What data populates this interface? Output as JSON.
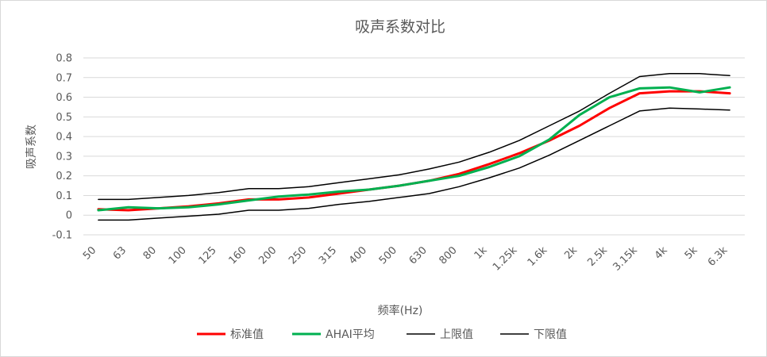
{
  "colors": {
    "standard": "#ff0000",
    "ahai": "#00b050",
    "upper": "#000000",
    "lower": "#000000",
    "grid": "#d9d9d9",
    "text": "#595959"
  },
  "chart_data": {
    "type": "line",
    "title": "吸声系数对比",
    "xlabel": "频率(Hz)",
    "ylabel": "吸声系数",
    "ylim": [
      -0.1,
      0.8
    ],
    "yticks": [
      "-0.1",
      "0",
      "0.1",
      "0.2",
      "0.3",
      "0.4",
      "0.5",
      "0.6",
      "0.7",
      "0.8"
    ],
    "grid": true,
    "legend_position": "bottom",
    "categories": [
      "50",
      "63",
      "80",
      "100",
      "125",
      "160",
      "200",
      "250",
      "315",
      "400",
      "500",
      "630",
      "800",
      "1k",
      "1.25k",
      "1.6k",
      "2k",
      "2.5k",
      "3.15k",
      "4k",
      "5k",
      "6.3k"
    ],
    "series": [
      {
        "name": "标准值",
        "color_key": "standard",
        "width": 3,
        "values": [
          0.03,
          0.025,
          0.035,
          0.045,
          0.06,
          0.08,
          0.08,
          0.09,
          0.11,
          0.13,
          0.15,
          0.175,
          0.21,
          0.26,
          0.315,
          0.38,
          0.455,
          0.545,
          0.62,
          0.63,
          0.63,
          0.62
        ]
      },
      {
        "name": "AHAI平均",
        "color_key": "ahai",
        "width": 3,
        "values": [
          0.025,
          0.04,
          0.035,
          0.04,
          0.055,
          0.075,
          0.095,
          0.105,
          0.12,
          0.13,
          0.15,
          0.175,
          0.2,
          0.245,
          0.3,
          0.385,
          0.51,
          0.6,
          0.645,
          0.65,
          0.625,
          0.65
        ]
      },
      {
        "name": "上限值",
        "color_key": "upper",
        "width": 1.5,
        "values": [
          0.08,
          0.08,
          0.09,
          0.1,
          0.115,
          0.135,
          0.135,
          0.145,
          0.165,
          0.185,
          0.205,
          0.235,
          0.27,
          0.32,
          0.38,
          0.455,
          0.53,
          0.62,
          0.705,
          0.72,
          0.72,
          0.71
        ]
      },
      {
        "name": "下限值",
        "color_key": "lower",
        "width": 1.5,
        "values": [
          -0.025,
          -0.025,
          -0.015,
          -0.005,
          0.005,
          0.025,
          0.025,
          0.035,
          0.055,
          0.07,
          0.09,
          0.11,
          0.145,
          0.19,
          0.24,
          0.305,
          0.38,
          0.455,
          0.53,
          0.545,
          0.54,
          0.535
        ]
      }
    ]
  }
}
